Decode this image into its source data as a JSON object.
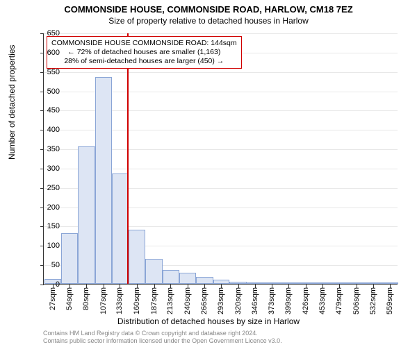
{
  "title_main": "COMMONSIDE HOUSE, COMMONSIDE ROAD, HARLOW, CM18 7EZ",
  "title_sub": "Size of property relative to detached houses in Harlow",
  "ylabel": "Number of detached properties",
  "xlabel": "Distribution of detached houses by size in Harlow",
  "chart": {
    "type": "histogram",
    "xlim": [
      13,
      572
    ],
    "ylim": [
      0,
      650
    ],
    "ytick_step": 50,
    "background_color": "#ffffff",
    "grid_color": "#e8e8e8",
    "axis_color": "#333333",
    "bar_fill": "#dde5f4",
    "bar_edge": "#8aa5d6",
    "reference_line": {
      "x": 144,
      "color": "#d00000",
      "width": 2
    },
    "xtick_labels": [
      "27sqm",
      "54sqm",
      "80sqm",
      "107sqm",
      "133sqm",
      "160sqm",
      "187sqm",
      "213sqm",
      "240sqm",
      "266sqm",
      "293sqm",
      "320sqm",
      "346sqm",
      "373sqm",
      "399sqm",
      "426sqm",
      "453sqm",
      "479sqm",
      "506sqm",
      "532sqm",
      "559sqm"
    ],
    "xtick_positions": [
      27,
      54,
      80,
      107,
      133,
      160,
      187,
      213,
      240,
      266,
      293,
      320,
      346,
      373,
      399,
      426,
      453,
      479,
      506,
      532,
      559
    ],
    "bars": [
      {
        "x0": 14,
        "x1": 40,
        "y": 12
      },
      {
        "x0": 40,
        "x1": 67,
        "y": 132
      },
      {
        "x0": 67,
        "x1": 94,
        "y": 355
      },
      {
        "x0": 94,
        "x1": 120,
        "y": 535
      },
      {
        "x0": 120,
        "x1": 147,
        "y": 285
      },
      {
        "x0": 147,
        "x1": 173,
        "y": 140
      },
      {
        "x0": 173,
        "x1": 200,
        "y": 65
      },
      {
        "x0": 200,
        "x1": 227,
        "y": 36
      },
      {
        "x0": 227,
        "x1": 253,
        "y": 28
      },
      {
        "x0": 253,
        "x1": 280,
        "y": 18
      },
      {
        "x0": 280,
        "x1": 306,
        "y": 10
      },
      {
        "x0": 306,
        "x1": 333,
        "y": 5
      },
      {
        "x0": 333,
        "x1": 360,
        "y": 4
      },
      {
        "x0": 360,
        "x1": 386,
        "y": 2
      },
      {
        "x0": 386,
        "x1": 413,
        "y": 2
      },
      {
        "x0": 413,
        "x1": 439,
        "y": 2
      },
      {
        "x0": 439,
        "x1": 466,
        "y": 2
      },
      {
        "x0": 466,
        "x1": 493,
        "y": 2
      },
      {
        "x0": 493,
        "x1": 519,
        "y": 2
      },
      {
        "x0": 519,
        "x1": 546,
        "y": 2
      },
      {
        "x0": 546,
        "x1": 572,
        "y": 2
      }
    ]
  },
  "annotation": {
    "line1": "COMMONSIDE HOUSE COMMONSIDE ROAD: 144sqm",
    "line2": "← 72% of detached houses are smaller (1,163)",
    "line3": "28% of semi-detached houses are larger (450) →",
    "border_color": "#d00000",
    "background": "#ffffff",
    "fontsize": 10.5
  },
  "footer": {
    "line1": "Contains HM Land Registry data © Crown copyright and database right 2024.",
    "line2": "Contains public sector information licensed under the Open Government Licence v3.0.",
    "color": "#888888"
  },
  "fonts": {
    "family": "Arial, sans-serif",
    "title_size": 13,
    "subtitle_size": 12,
    "label_size": 12,
    "tick_size": 11
  }
}
